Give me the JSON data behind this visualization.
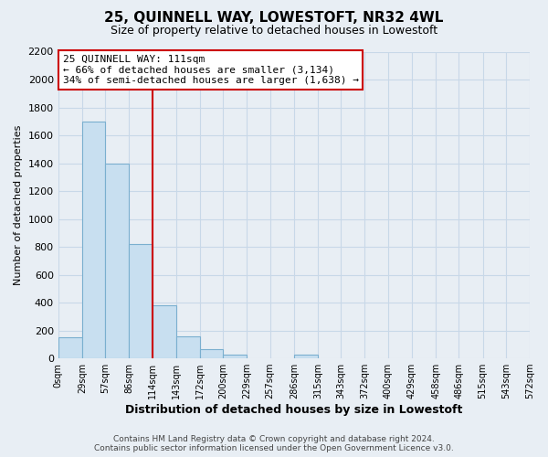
{
  "title": "25, QUINNELL WAY, LOWESTOFT, NR32 4WL",
  "subtitle": "Size of property relative to detached houses in Lowestoft",
  "xlabel": "Distribution of detached houses by size in Lowestoft",
  "ylabel": "Number of detached properties",
  "bar_color": "#c8dff0",
  "bar_edge_color": "#7aafcf",
  "bin_edges": [
    0,
    29,
    57,
    86,
    114,
    143,
    172,
    200,
    229,
    257,
    286,
    315,
    343,
    372,
    400,
    429,
    458,
    486,
    515,
    543,
    572
  ],
  "bin_labels": [
    "0sqm",
    "29sqm",
    "57sqm",
    "86sqm",
    "114sqm",
    "143sqm",
    "172sqm",
    "200sqm",
    "229sqm",
    "257sqm",
    "286sqm",
    "315sqm",
    "343sqm",
    "372sqm",
    "400sqm",
    "429sqm",
    "458sqm",
    "486sqm",
    "515sqm",
    "543sqm",
    "572sqm"
  ],
  "bar_heights": [
    150,
    1700,
    1400,
    820,
    380,
    160,
    65,
    30,
    0,
    0,
    25,
    0,
    0,
    0,
    0,
    0,
    0,
    0,
    0,
    0
  ],
  "property_line_x": 114,
  "property_line_color": "#cc0000",
  "annotation_line1": "25 QUINNELL WAY: 111sqm",
  "annotation_line2": "← 66% of detached houses are smaller (3,134)",
  "annotation_line3": "34% of semi-detached houses are larger (1,638) →",
  "annotation_box_color": "#ffffff",
  "annotation_box_edge": "#cc0000",
  "ylim": [
    0,
    2200
  ],
  "grid_color": "#c8d8e8",
  "footer_line1": "Contains HM Land Registry data © Crown copyright and database right 2024.",
  "footer_line2": "Contains public sector information licensed under the Open Government Licence v3.0.",
  "bg_color": "#e8eef4",
  "plot_bg_color": "#e8eef4"
}
